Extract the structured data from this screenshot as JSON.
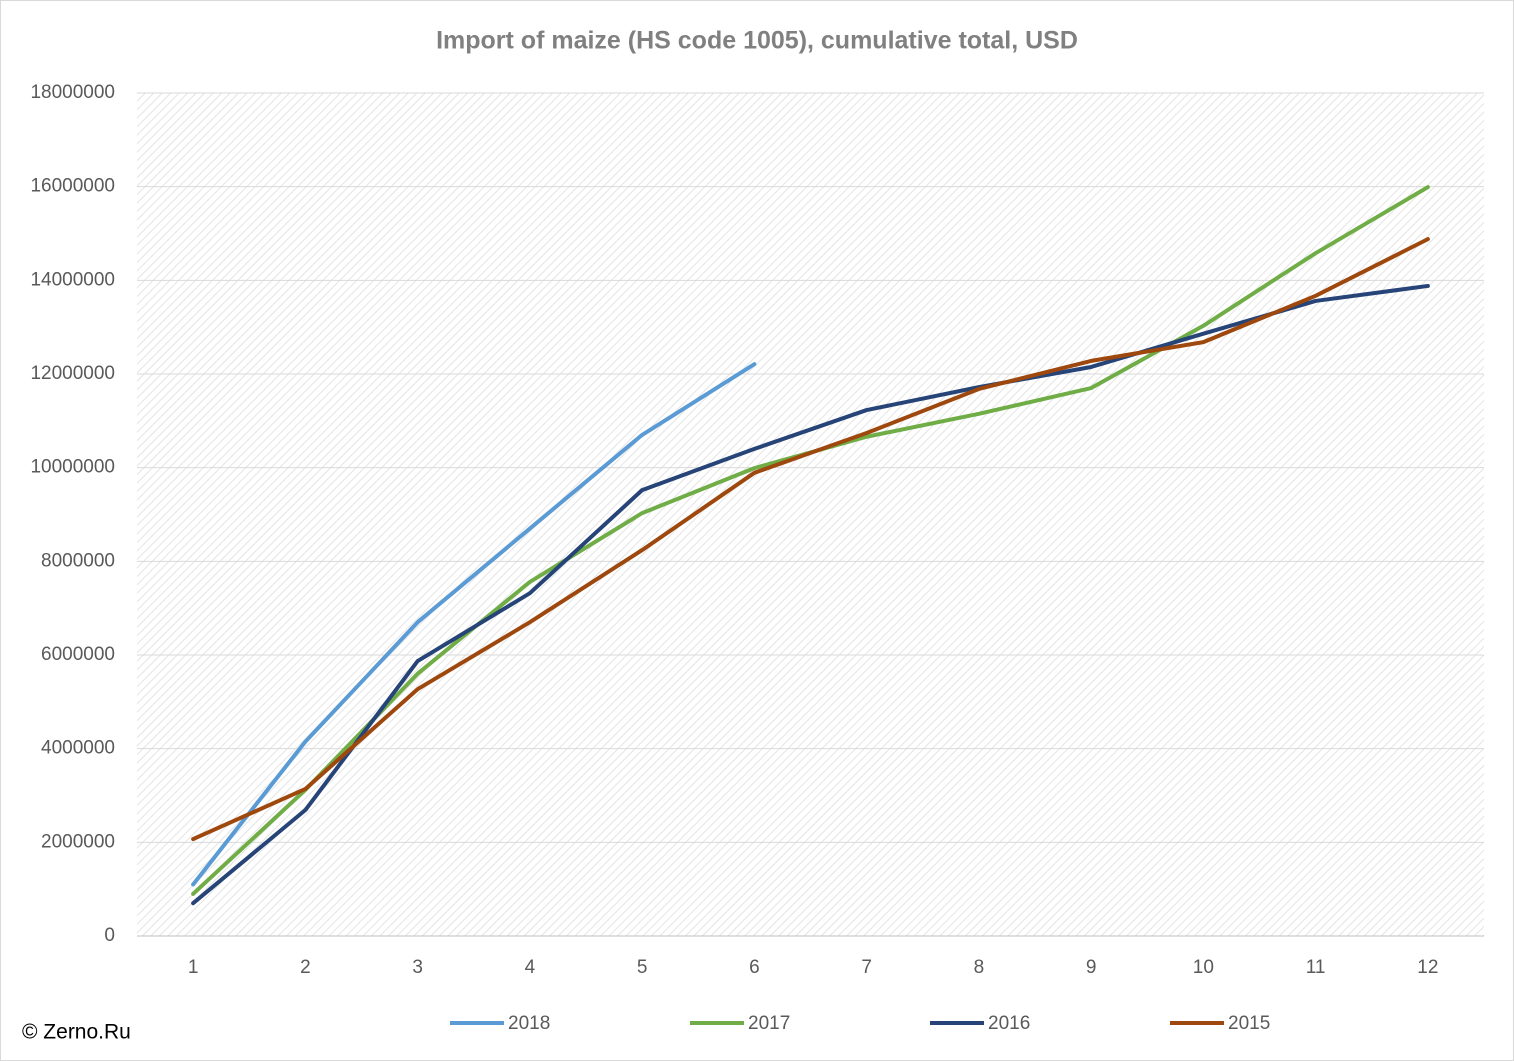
{
  "chart_data": {
    "type": "line",
    "title": "Import of maize (HS code 1005), cumulative total, USD",
    "annotation": "© Zerno.Ru",
    "categories": [
      "1",
      "2",
      "3",
      "4",
      "5",
      "6",
      "7",
      "8",
      "9",
      "10",
      "11",
      "12"
    ],
    "series": [
      {
        "name": "2018",
        "color": "#5b9bd5",
        "values": [
          1100000,
          4150000,
          6700000,
          8700000,
          10700000,
          12210000,
          null,
          null,
          null,
          null,
          null,
          null
        ]
      },
      {
        "name": "2017",
        "color": "#70ad47",
        "values": [
          900000,
          3120000,
          5600000,
          7560000,
          9030000,
          9990000,
          10660000,
          11150000,
          11700000,
          13030000,
          14580000,
          15990000
        ]
      },
      {
        "name": "2016",
        "color": "#264478",
        "values": [
          700000,
          2690000,
          5870000,
          7320000,
          9520000,
          10400000,
          11230000,
          11720000,
          12150000,
          12860000,
          13560000,
          13880000
        ]
      },
      {
        "name": "2015",
        "color": "#9e480e",
        "values": [
          2070000,
          3140000,
          5270000,
          6700000,
          8240000,
          9890000,
          10740000,
          11680000,
          12280000,
          12680000,
          13670000,
          14880000
        ]
      }
    ],
    "ylim": [
      0,
      18000000
    ],
    "yticks": [
      0,
      2000000,
      4000000,
      6000000,
      8000000,
      10000000,
      12000000,
      14000000,
      16000000,
      18000000
    ],
    "grid": true,
    "legend": "bottom"
  }
}
